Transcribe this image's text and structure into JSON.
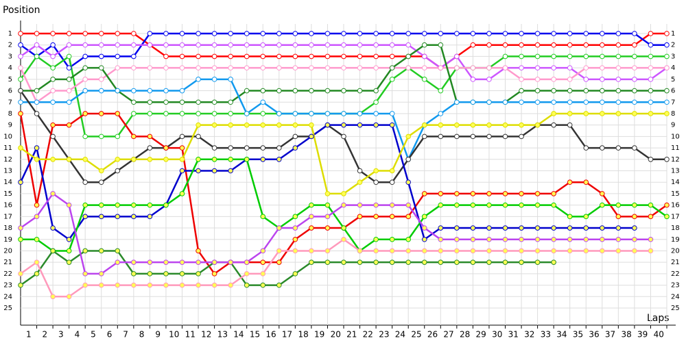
{
  "chart_data": {
    "type": "line",
    "y_title": "Position",
    "x_title": "Laps",
    "x": [
      0,
      1,
      2,
      3,
      4,
      5,
      6,
      7,
      8,
      9,
      10,
      11,
      12,
      13,
      14,
      15,
      16,
      17,
      18,
      19,
      20,
      21,
      22,
      23,
      24,
      25,
      26,
      27,
      28,
      29,
      30,
      31,
      32,
      33,
      34,
      35,
      36,
      37,
      38,
      39,
      40
    ],
    "xlim": [
      0,
      40
    ],
    "xticks": [
      1,
      2,
      3,
      4,
      5,
      6,
      7,
      8,
      9,
      10,
      11,
      12,
      13,
      14,
      15,
      16,
      17,
      18,
      19,
      20,
      21,
      22,
      23,
      24,
      25,
      26,
      27,
      28,
      29,
      30,
      31,
      32,
      33,
      34,
      35,
      36,
      37,
      38,
      39,
      40
    ],
    "ylim": [
      1,
      25
    ],
    "y_reversed": true,
    "yticks": [
      1,
      2,
      3,
      4,
      5,
      6,
      7,
      8,
      9,
      10,
      11,
      12,
      13,
      14,
      15,
      16,
      17,
      18,
      19,
      20,
      21,
      22,
      23,
      24,
      25
    ],
    "grid": true,
    "series": [
      {
        "color": "#ff0000",
        "marker_fill": "#ffffff",
        "values": [
          1,
          1,
          1,
          1,
          1,
          1,
          1,
          1,
          2,
          3,
          3,
          3,
          3,
          3,
          3,
          3,
          3,
          3,
          3,
          3,
          3,
          3,
          3,
          3,
          3,
          3,
          4,
          3,
          2,
          2,
          2,
          2,
          2,
          2,
          2,
          2,
          2,
          2,
          2,
          1,
          1
        ]
      },
      {
        "color": "#0000ee",
        "marker_fill": "#ffffff",
        "values": [
          2,
          3,
          2,
          4,
          3,
          3,
          3,
          3,
          1,
          1,
          1,
          1,
          1,
          1,
          1,
          1,
          1,
          1,
          1,
          1,
          1,
          1,
          1,
          1,
          1,
          1,
          1,
          1,
          1,
          1,
          1,
          1,
          1,
          1,
          1,
          1,
          1,
          1,
          1,
          2,
          2
        ]
      },
      {
        "color": "#cc55ff",
        "marker_fill": "#ffffff",
        "values": [
          3,
          2,
          3,
          2,
          2,
          2,
          2,
          2,
          2,
          2,
          2,
          2,
          2,
          2,
          2,
          2,
          2,
          2,
          2,
          2,
          2,
          2,
          2,
          2,
          2,
          3,
          4,
          3,
          5,
          5,
          4,
          4,
          4,
          4,
          4,
          5,
          5,
          5,
          5,
          5,
          4
        ]
      },
      {
        "color": "#22cc22",
        "marker_fill": "#ffffff",
        "values": [
          5,
          3,
          4,
          3,
          10,
          10,
          10,
          8,
          8,
          8,
          8,
          8,
          8,
          8,
          8,
          8,
          8,
          8,
          8,
          8,
          8,
          8,
          7,
          5,
          4,
          5,
          6,
          4,
          4,
          4,
          3,
          3,
          3,
          3,
          3,
          3,
          3,
          3,
          3,
          3,
          3
        ]
      },
      {
        "color": "#ff99cc",
        "marker_fill": "#ffffff",
        "values": [
          4,
          7,
          6,
          6,
          5,
          5,
          4,
          4,
          4,
          4,
          4,
          4,
          4,
          4,
          4,
          4,
          4,
          4,
          4,
          4,
          4,
          4,
          4,
          4,
          4,
          4,
          4,
          4,
          4,
          4,
          4,
          5,
          5,
          5,
          5,
          4,
          4,
          4,
          4,
          4,
          4
        ]
      },
      {
        "color": "#228822",
        "marker_fill": "#ffffff",
        "values": [
          6,
          6,
          5,
          5,
          4,
          4,
          6,
          7,
          7,
          7,
          7,
          7,
          7,
          7,
          6,
          6,
          6,
          6,
          6,
          6,
          6,
          6,
          6,
          4,
          3,
          2,
          2,
          7,
          7,
          7,
          7,
          6,
          6,
          6,
          6,
          6,
          6,
          6,
          6,
          6,
          6
        ]
      },
      {
        "color": "#1199ee",
        "marker_fill": "#ffffff",
        "values": [
          7,
          7,
          7,
          7,
          6,
          6,
          6,
          6,
          6,
          6,
          6,
          5,
          5,
          5,
          8,
          7,
          8,
          8,
          8,
          8,
          8,
          8,
          8,
          8,
          12,
          9,
          8,
          7,
          7,
          7,
          7,
          7,
          7,
          7,
          7,
          7,
          7,
          7,
          7,
          7,
          7
        ]
      },
      {
        "color": "#333333",
        "marker_fill": "#ffffff",
        "values": [
          6,
          8,
          10,
          12,
          14,
          14,
          13,
          12,
          11,
          11,
          10,
          10,
          11,
          11,
          11,
          11,
          11,
          10,
          10,
          9,
          10,
          13,
          14,
          14,
          12,
          10,
          10,
          10,
          10,
          10,
          10,
          10,
          9,
          9,
          9,
          11,
          11,
          11,
          11,
          12,
          12
        ]
      },
      {
        "color": "#ee0000",
        "marker_fill": "#ffff55",
        "values": [
          8,
          16,
          9,
          9,
          8,
          8,
          8,
          10,
          10,
          11,
          11,
          20,
          22,
          21,
          21,
          21,
          21,
          19,
          18,
          18,
          18,
          17,
          17,
          17,
          17,
          15,
          15,
          15,
          15,
          15,
          15,
          15,
          15,
          15,
          14,
          14,
          15,
          17,
          17,
          17,
          16
        ]
      },
      {
        "color": "#0000cc",
        "marker_fill": "#ffff55",
        "values": [
          14,
          11,
          18,
          19,
          17,
          17,
          17,
          17,
          17,
          16,
          13,
          13,
          13,
          13,
          12,
          12,
          12,
          11,
          10,
          9,
          9,
          9,
          9,
          9,
          14,
          19,
          18,
          18,
          18,
          18,
          18,
          18,
          18,
          18,
          18,
          18,
          18,
          18,
          18,
          null,
          null
        ]
      },
      {
        "color": "#dddd00",
        "marker_fill": "#ffff55",
        "values": [
          11,
          12,
          12,
          12,
          12,
          13,
          12,
          12,
          12,
          12,
          12,
          9,
          9,
          9,
          9,
          9,
          9,
          9,
          9,
          15,
          15,
          14,
          13,
          13,
          10,
          9,
          9,
          9,
          9,
          9,
          9,
          9,
          9,
          8,
          8,
          8,
          8,
          8,
          8,
          8,
          8
        ]
      },
      {
        "color": "#00cc00",
        "marker_fill": "#ffff55",
        "values": [
          19,
          19,
          20,
          20,
          16,
          16,
          16,
          16,
          16,
          16,
          15,
          12,
          12,
          12,
          12,
          17,
          18,
          17,
          16,
          16,
          18,
          20,
          19,
          19,
          19,
          17,
          16,
          16,
          16,
          16,
          16,
          16,
          16,
          16,
          17,
          17,
          16,
          16,
          16,
          16,
          17
        ]
      },
      {
        "color": "#2a8a2a",
        "marker_fill": "#ffff55",
        "values": [
          23,
          22,
          20,
          21,
          20,
          20,
          20,
          22,
          22,
          22,
          22,
          22,
          21,
          21,
          23,
          23,
          23,
          22,
          21,
          21,
          21,
          21,
          21,
          21,
          21,
          21,
          21,
          21,
          21,
          21,
          21,
          21,
          21,
          21,
          null,
          null,
          null,
          null,
          null,
          null,
          null
        ]
      },
      {
        "color": "#bb44ee",
        "marker_fill": "#ffff55",
        "values": [
          18,
          17,
          15,
          16,
          22,
          22,
          21,
          21,
          21,
          21,
          21,
          21,
          21,
          21,
          21,
          20,
          18,
          18,
          17,
          17,
          16,
          16,
          16,
          16,
          16,
          18,
          19,
          19,
          19,
          19,
          19,
          19,
          19,
          19,
          19,
          19,
          19,
          19,
          19,
          19,
          null
        ]
      },
      {
        "color": "#ff99bb",
        "marker_fill": "#ffff55",
        "values": [
          22,
          21,
          24,
          24,
          23,
          23,
          23,
          23,
          23,
          23,
          23,
          23,
          23,
          23,
          22,
          22,
          20,
          20,
          20,
          20,
          19,
          20,
          20,
          20,
          20,
          20,
          20,
          20,
          20,
          20,
          20,
          20,
          20,
          20,
          20,
          20,
          20,
          20,
          20,
          20,
          null
        ]
      }
    ]
  }
}
